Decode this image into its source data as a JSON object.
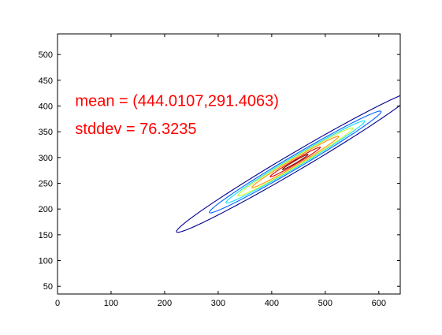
{
  "chart_data": {
    "type": "contour",
    "title": "",
    "xlabel": "",
    "ylabel": "",
    "xlim": [
      0,
      640
    ],
    "ylim": [
      35,
      540
    ],
    "xticks": [
      0,
      100,
      200,
      300,
      400,
      500,
      600
    ],
    "yticks": [
      50,
      100,
      150,
      200,
      250,
      300,
      350,
      400,
      450,
      500
    ],
    "grid": false,
    "annotations": [
      {
        "text": "mean = (444.0107,291.4063)",
        "x": 33,
        "y": 400,
        "color": "#ff0000"
      },
      {
        "text": "stddev = 76.3235",
        "x": 33,
        "y": 346,
        "color": "#ff0000"
      }
    ],
    "gaussian": {
      "center": [
        444.0107,
        291.4063
      ],
      "angle_deg": 31.5
    },
    "contours": [
      {
        "level": 1,
        "color": "#00008f",
        "semi_major": 260,
        "semi_minor": 17
      },
      {
        "level": 2,
        "color": "#0060ff",
        "semi_major": 188,
        "semi_minor": 12.5
      },
      {
        "level": 3,
        "color": "#10e0ff",
        "semi_major": 152,
        "semi_minor": 10
      },
      {
        "level": 4,
        "color": "#c8ff30",
        "semi_major": 126,
        "semi_minor": 8.5
      },
      {
        "level": 5,
        "color": "#ff9000",
        "semi_major": 95,
        "semi_minor": 6.5
      },
      {
        "level": 6,
        "color": "#e00000",
        "semi_major": 55,
        "semi_minor": 4
      },
      {
        "level": 7,
        "color": "#800000",
        "semi_major": 28,
        "semi_minor": 2.2
      }
    ]
  }
}
